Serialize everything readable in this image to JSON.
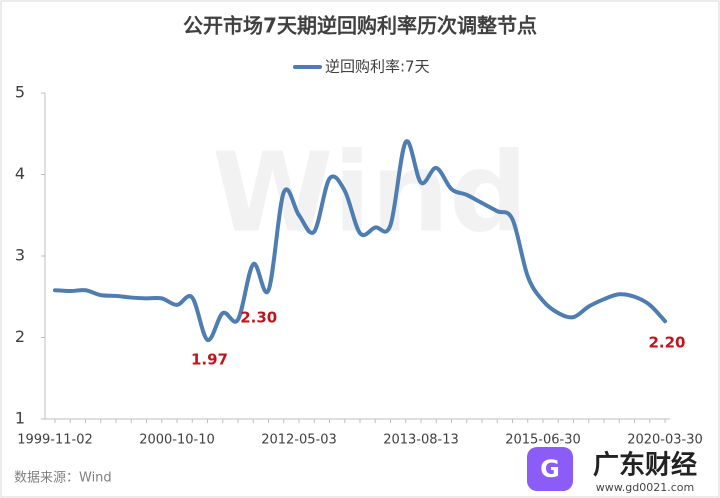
{
  "chart_data": {
    "type": "line",
    "title": "公开市场7天期逆回购利率历次调整节点",
    "source": "数据来源：Wind",
    "watermark": "Wind",
    "brand": {
      "name": "广东财经",
      "url": "www.gd0021.com"
    },
    "categories": [
      "1999-11-02",
      null,
      null,
      null,
      null,
      null,
      null,
      null,
      "2000-10-10",
      null,
      null,
      null,
      null,
      null,
      null,
      null,
      "2012-05-03",
      null,
      null,
      null,
      null,
      null,
      null,
      null,
      "2013-08-13",
      null,
      null,
      null,
      null,
      null,
      null,
      null,
      "2015-06-30",
      null,
      null,
      null,
      null,
      null,
      null,
      null,
      "2020-03-30"
    ],
    "series": [
      {
        "name": "逆回购利率:7天",
        "color": "#4e7db1",
        "values": [
          2.58,
          2.57,
          2.58,
          2.52,
          2.51,
          2.49,
          2.48,
          2.48,
          2.4,
          2.49,
          1.97,
          2.3,
          2.22,
          2.9,
          2.58,
          3.78,
          3.5,
          3.3,
          3.95,
          3.8,
          3.28,
          3.35,
          3.38,
          4.4,
          3.9,
          4.08,
          3.82,
          3.75,
          3.65,
          3.55,
          3.45,
          2.75,
          2.45,
          2.3,
          2.25,
          2.38,
          2.47,
          2.53,
          2.5,
          2.4,
          2.2
        ],
        "value_labels": [
          null,
          null,
          null,
          null,
          null,
          null,
          null,
          null,
          null,
          null,
          "1.97",
          "2.30",
          null,
          null,
          null,
          null,
          null,
          null,
          null,
          null,
          null,
          null,
          null,
          null,
          null,
          null,
          null,
          null,
          null,
          null,
          null,
          null,
          null,
          null,
          null,
          null,
          null,
          null,
          null,
          null,
          "2.20"
        ],
        "label_color": "#c0141c"
      }
    ],
    "ylim": [
      1,
      5
    ],
    "yticks": [
      1,
      2,
      3,
      4,
      5
    ],
    "grid": false
  }
}
